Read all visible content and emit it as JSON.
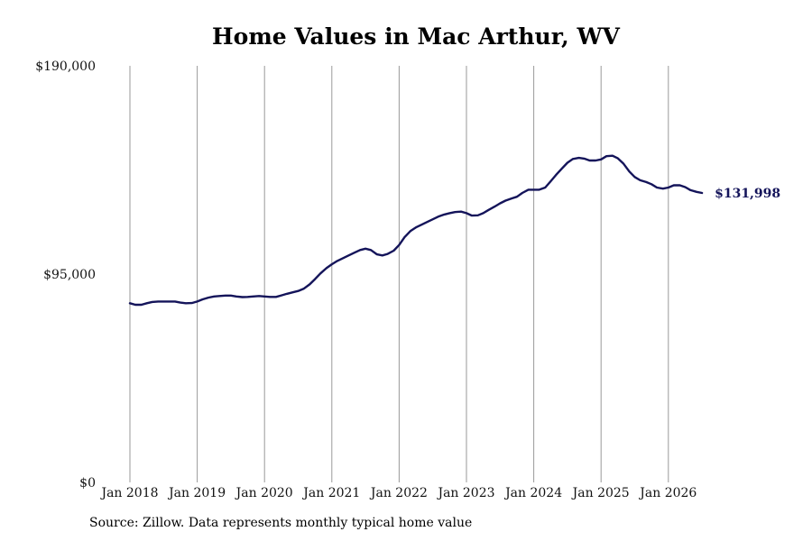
{
  "chart_data": {
    "type": "line",
    "title": "Home Values in Mac Arthur, WV",
    "xlabel": "",
    "ylabel": "",
    "ylim": [
      0,
      190000
    ],
    "yticks": [
      {
        "value": 0,
        "label": "$0"
      },
      {
        "value": 95000,
        "label": "$95,000"
      },
      {
        "value": 190000,
        "label": "$190,000"
      }
    ],
    "xticks": [
      {
        "value": 2018.0,
        "label": "Jan 2018"
      },
      {
        "value": 2019.0,
        "label": "Jan 2019"
      },
      {
        "value": 2020.0,
        "label": "Jan 2020"
      },
      {
        "value": 2021.0,
        "label": "Jan 2021"
      },
      {
        "value": 2022.0,
        "label": "Jan 2022"
      },
      {
        "value": 2023.0,
        "label": "Jan 2023"
      },
      {
        "value": 2024.0,
        "label": "Jan 2024"
      },
      {
        "value": 2025.0,
        "label": "Jan 2025"
      },
      {
        "value": 2026.0,
        "label": "Jan 2026"
      }
    ],
    "xlim": [
      2017.75,
      2027.0
    ],
    "grid": "vertical",
    "line_color": "#14145a",
    "end_label": "$131,998",
    "series": [
      {
        "points": [
          [
            2018.0,
            81700
          ],
          [
            2018.08,
            81000
          ],
          [
            2018.17,
            81000
          ],
          [
            2018.25,
            81700
          ],
          [
            2018.33,
            82300
          ],
          [
            2018.42,
            82500
          ],
          [
            2018.5,
            82500
          ],
          [
            2018.58,
            82500
          ],
          [
            2018.67,
            82500
          ],
          [
            2018.75,
            82000
          ],
          [
            2018.83,
            81700
          ],
          [
            2018.92,
            81800
          ],
          [
            2019.0,
            82500
          ],
          [
            2019.08,
            83500
          ],
          [
            2019.17,
            84300
          ],
          [
            2019.25,
            84800
          ],
          [
            2019.33,
            85000
          ],
          [
            2019.42,
            85200
          ],
          [
            2019.5,
            85200
          ],
          [
            2019.58,
            84800
          ],
          [
            2019.67,
            84500
          ],
          [
            2019.75,
            84600
          ],
          [
            2019.83,
            84800
          ],
          [
            2019.92,
            85000
          ],
          [
            2020.0,
            84800
          ],
          [
            2020.08,
            84600
          ],
          [
            2020.17,
            84600
          ],
          [
            2020.25,
            85300
          ],
          [
            2020.33,
            86000
          ],
          [
            2020.42,
            86700
          ],
          [
            2020.5,
            87300
          ],
          [
            2020.58,
            88300
          ],
          [
            2020.67,
            90300
          ],
          [
            2020.75,
            92700
          ],
          [
            2020.83,
            95300
          ],
          [
            2020.92,
            97700
          ],
          [
            2021.0,
            99500
          ],
          [
            2021.08,
            101000
          ],
          [
            2021.17,
            102300
          ],
          [
            2021.25,
            103500
          ],
          [
            2021.33,
            104700
          ],
          [
            2021.42,
            106000
          ],
          [
            2021.5,
            106600
          ],
          [
            2021.58,
            106000
          ],
          [
            2021.67,
            104000
          ],
          [
            2021.75,
            103500
          ],
          [
            2021.83,
            104200
          ],
          [
            2021.92,
            105700
          ],
          [
            2022.0,
            108300
          ],
          [
            2022.08,
            111800
          ],
          [
            2022.17,
            114700
          ],
          [
            2022.25,
            116300
          ],
          [
            2022.33,
            117500
          ],
          [
            2022.42,
            118800
          ],
          [
            2022.5,
            120000
          ],
          [
            2022.58,
            121200
          ],
          [
            2022.67,
            122200
          ],
          [
            2022.75,
            122800
          ],
          [
            2022.83,
            123300
          ],
          [
            2022.92,
            123500
          ],
          [
            2023.0,
            122800
          ],
          [
            2023.08,
            121700
          ],
          [
            2023.17,
            121800
          ],
          [
            2023.25,
            122800
          ],
          [
            2023.33,
            124300
          ],
          [
            2023.42,
            125800
          ],
          [
            2023.5,
            127300
          ],
          [
            2023.58,
            128500
          ],
          [
            2023.67,
            129500
          ],
          [
            2023.75,
            130300
          ],
          [
            2023.83,
            132000
          ],
          [
            2023.92,
            133500
          ],
          [
            2024.0,
            133500
          ],
          [
            2024.08,
            133500
          ],
          [
            2024.17,
            134500
          ],
          [
            2024.25,
            137300
          ],
          [
            2024.33,
            140200
          ],
          [
            2024.42,
            143200
          ],
          [
            2024.5,
            145800
          ],
          [
            2024.58,
            147500
          ],
          [
            2024.67,
            148000
          ],
          [
            2024.75,
            147700
          ],
          [
            2024.83,
            146800
          ],
          [
            2024.92,
            146800
          ],
          [
            2025.0,
            147300
          ],
          [
            2025.08,
            148800
          ],
          [
            2025.17,
            149000
          ],
          [
            2025.25,
            147800
          ],
          [
            2025.33,
            145500
          ],
          [
            2025.42,
            141800
          ],
          [
            2025.5,
            139300
          ],
          [
            2025.58,
            137800
          ],
          [
            2025.67,
            137000
          ],
          [
            2025.75,
            136000
          ],
          [
            2025.83,
            134500
          ],
          [
            2025.92,
            134000
          ],
          [
            2026.0,
            134500
          ],
          [
            2026.08,
            135500
          ],
          [
            2026.17,
            135500
          ],
          [
            2026.25,
            134700
          ],
          [
            2026.33,
            133300
          ],
          [
            2026.42,
            132500
          ],
          [
            2026.5,
            131998
          ]
        ]
      }
    ]
  },
  "source": "Source: Zillow. Data represents monthly typical home value"
}
